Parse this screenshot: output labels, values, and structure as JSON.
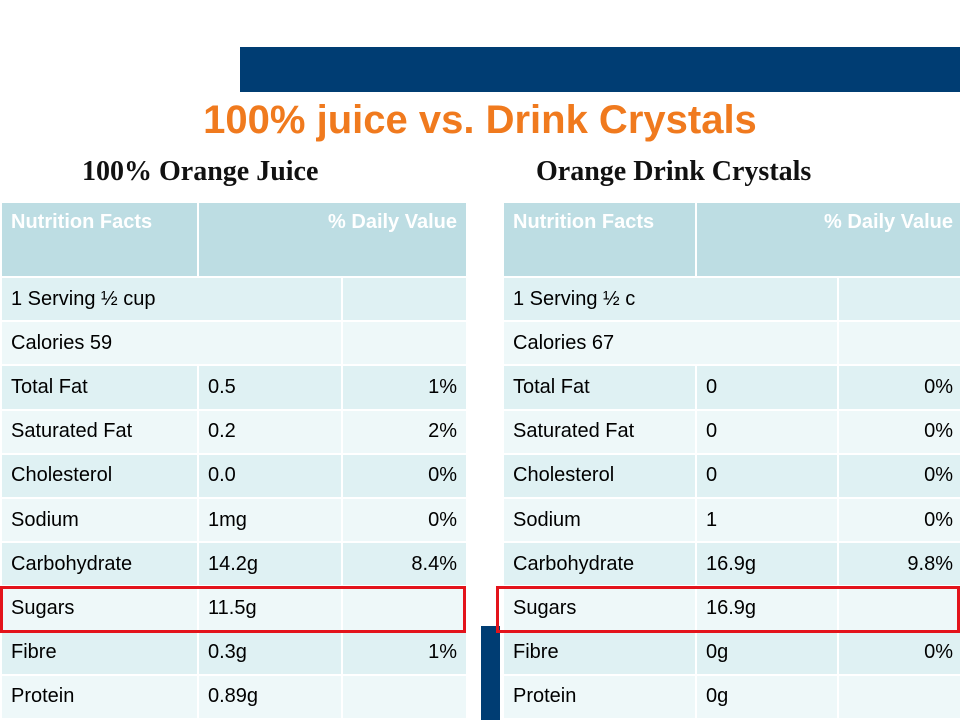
{
  "slide": {
    "title": "100% juice vs. Drink Crystals"
  },
  "left": {
    "subtitle": "100% Orange Juice",
    "header": {
      "col1": "Nutrition Facts",
      "col2": "% Daily Value"
    },
    "serving": "1 Serving ½ cup",
    "calories": "Calories 59",
    "rows": [
      {
        "name": "Total Fat",
        "amount": "0.5",
        "dv": "1%"
      },
      {
        "name": "Saturated Fat",
        "amount": "0.2",
        "dv": "2%"
      },
      {
        "name": "Cholesterol",
        "amount": "0.0",
        "dv": "0%"
      },
      {
        "name": "Sodium",
        "amount": "1mg",
        "dv": "0%"
      },
      {
        "name": "Carbohydrate",
        "amount": "14.2g",
        "dv": "8.4%"
      },
      {
        "name": "Sugars",
        "amount": "11.5g",
        "dv": ""
      },
      {
        "name": "Fibre",
        "amount": "0.3g",
        "dv": "1%"
      },
      {
        "name": "Protein",
        "amount": "0.89g",
        "dv": ""
      }
    ]
  },
  "right": {
    "subtitle": "Orange Drink Crystals",
    "header": {
      "col1": "Nutrition Facts",
      "col2": "% Daily Value"
    },
    "serving": "1 Serving ½ c",
    "calories": "Calories 67",
    "rows": [
      {
        "name": "Total Fat",
        "amount": "0",
        "dv": "0%"
      },
      {
        "name": "Saturated Fat",
        "amount": "0",
        "dv": "0%"
      },
      {
        "name": "Cholesterol",
        "amount": "0",
        "dv": "0%"
      },
      {
        "name": "Sodium",
        "amount": "1",
        "dv": "0%"
      },
      {
        "name": "Carbohydrate",
        "amount": "16.9g",
        "dv": "9.8%"
      },
      {
        "name": "Sugars",
        "amount": "16.9g",
        "dv": ""
      },
      {
        "name": "Fibre",
        "amount": "0g",
        "dv": "0%"
      },
      {
        "name": "Protein",
        "amount": "0g",
        "dv": ""
      }
    ]
  },
  "colors": {
    "title": "#f07a1e",
    "accent_bar": "#003d73",
    "header_bg": "#bddde3",
    "row_odd": "#dff1f3",
    "row_even": "#eef8f9",
    "highlight": "#e3131b"
  }
}
